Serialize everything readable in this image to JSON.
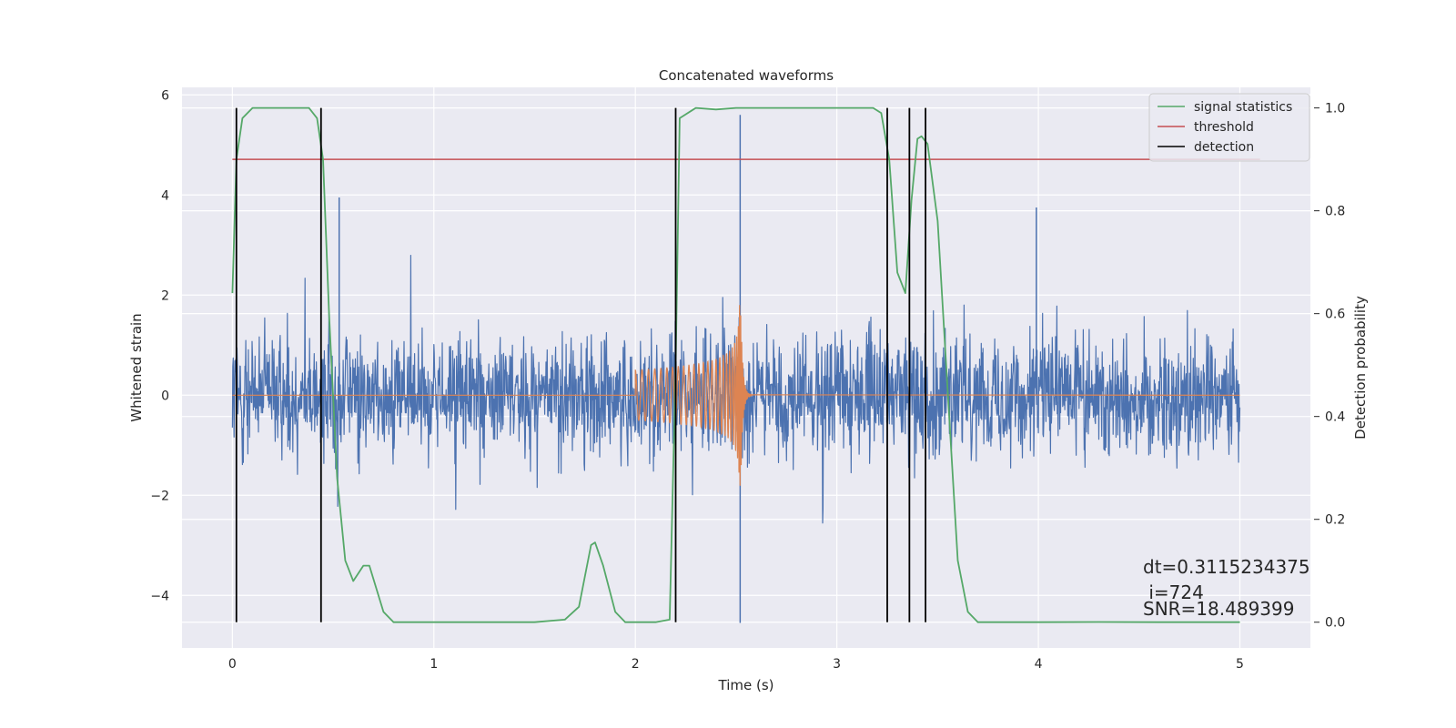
{
  "chart_data": {
    "type": "line",
    "title": "Concatenated waveforms",
    "xlabel": "Time (s)",
    "ylabel": "Whitened strain",
    "y2label": "Detection probability",
    "xlim": [
      -0.25,
      5.35
    ],
    "ylim": [
      -5.05,
      6.15
    ],
    "y2lim": [
      -0.05,
      1.04
    ],
    "x_ticks": [
      0,
      1,
      2,
      3,
      4,
      5
    ],
    "y_ticks": [
      -4,
      -2,
      0,
      2,
      4,
      6
    ],
    "y2_ticks": [
      0.0,
      0.2,
      0.4,
      0.6,
      0.8,
      1.0
    ],
    "x_tick_labels": [
      "0",
      "1",
      "2",
      "3",
      "4",
      "5"
    ],
    "y_tick_labels": [
      "−4",
      "−2",
      "0",
      "2",
      "4",
      "6"
    ],
    "y2_tick_labels": [
      "0.0",
      "0.2",
      "0.4",
      "0.6",
      "0.8",
      "1.0"
    ],
    "grid": true,
    "legend_position": "top-right",
    "legend": [
      {
        "label": "signal statistics",
        "color": "#55a868"
      },
      {
        "label": "threshold",
        "color": "#c44e52"
      },
      {
        "label": "detection",
        "color": "#000000"
      }
    ],
    "colors": {
      "noise": "#4c72b0",
      "injection": "#dd8452",
      "signal_statistics": "#55a868",
      "threshold": "#c44e52",
      "detection": "#000000",
      "background": "#eaeaf2"
    },
    "noise_strain": {
      "x_range": [
        0.0,
        5.0
      ],
      "band_approx": [
        -1.9,
        1.9
      ],
      "max_spike": 4.1,
      "min_spike": -4.6
    },
    "injection": {
      "t_start": 2.0,
      "t_merger": 2.52,
      "peak_amplitude": 2.9
    },
    "signal_statistics": {
      "x": [
        0.0,
        0.02,
        0.05,
        0.1,
        0.2,
        0.38,
        0.42,
        0.45,
        0.48,
        0.52,
        0.56,
        0.6,
        0.65,
        0.68,
        0.75,
        0.8,
        1.0,
        1.5,
        1.65,
        1.72,
        1.78,
        1.8,
        1.84,
        1.9,
        1.95,
        2.0,
        2.1,
        2.17,
        2.2,
        2.22,
        2.3,
        2.4,
        2.5,
        2.7,
        3.0,
        3.18,
        3.22,
        3.26,
        3.3,
        3.34,
        3.37,
        3.4,
        3.42,
        3.45,
        3.5,
        3.55,
        3.6,
        3.65,
        3.7,
        3.8,
        4.0,
        4.3,
        4.6,
        5.0
      ],
      "y": [
        0.64,
        0.9,
        0.98,
        1.0,
        1.0,
        1.0,
        0.98,
        0.9,
        0.6,
        0.28,
        0.12,
        0.08,
        0.11,
        0.11,
        0.02,
        0.0,
        0.0,
        0.0,
        0.005,
        0.03,
        0.15,
        0.155,
        0.11,
        0.02,
        0.0,
        0.0,
        0.0,
        0.005,
        0.5,
        0.98,
        1.0,
        0.997,
        1.0,
        1.0,
        1.0,
        1.0,
        0.99,
        0.9,
        0.68,
        0.64,
        0.82,
        0.94,
        0.945,
        0.93,
        0.78,
        0.45,
        0.12,
        0.02,
        0.0,
        0.0,
        0.0,
        0.0005,
        0.0,
        0.0
      ]
    },
    "threshold": {
      "x": [
        0.0,
        5.1
      ],
      "value": 0.9
    },
    "detections": [
      0.02,
      0.44,
      2.2,
      3.25,
      3.36,
      3.44
    ],
    "annotation_lines": [
      "dt=0.3115234375",
      " i=724",
      "SNR=18.489399"
    ]
  }
}
